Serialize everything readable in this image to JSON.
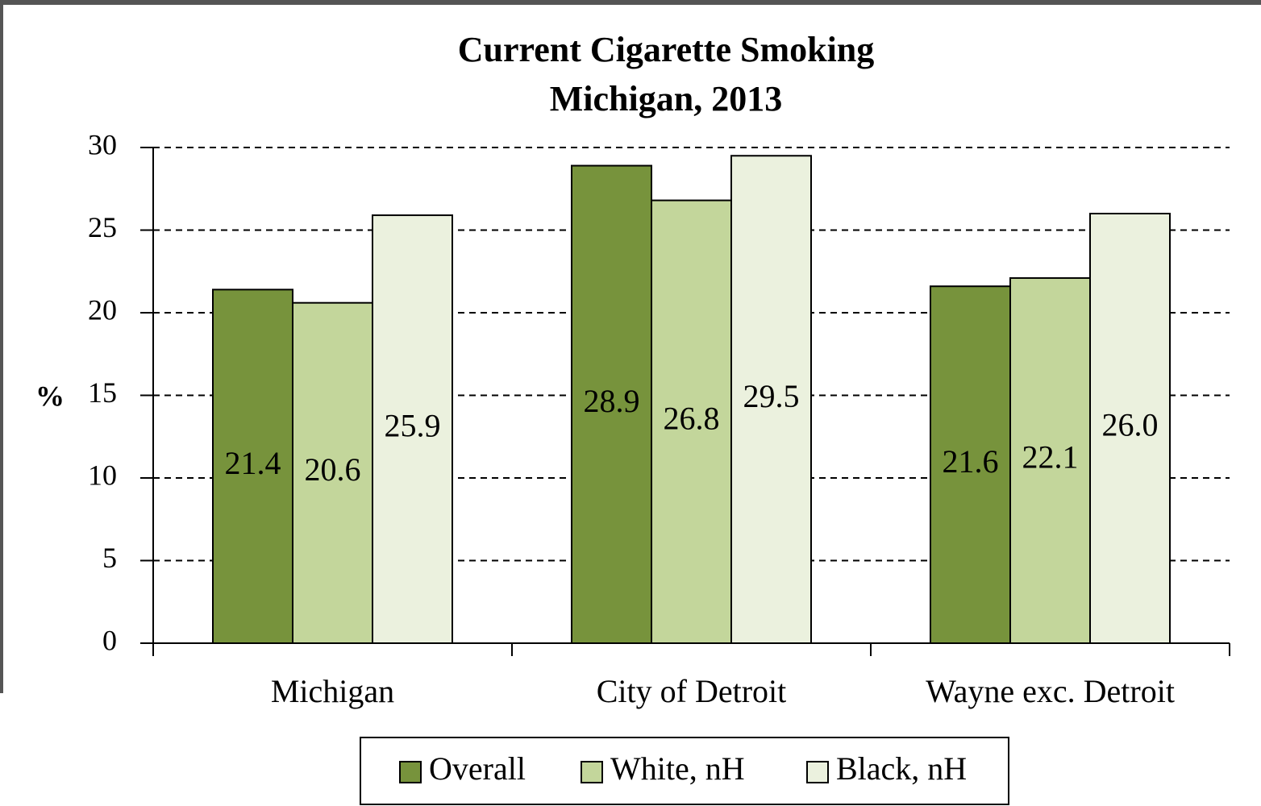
{
  "chart_data": {
    "type": "bar",
    "title": "Current Cigarette Smoking",
    "subtitle": "Michigan, 2013",
    "y_label": "%",
    "categories": [
      "Michigan",
      "City of Detroit",
      "Wayne exc. Detroit"
    ],
    "series": [
      {
        "name": "Overall",
        "color": "#77933c",
        "values": [
          21.4,
          28.9,
          21.6
        ],
        "value_labels": [
          "21.4",
          "28.9",
          "21.6"
        ]
      },
      {
        "name": "White, nH",
        "color": "#c3d69b",
        "values": [
          20.6,
          26.8,
          22.1
        ],
        "value_labels": [
          "20.6",
          "26.8",
          "22.1"
        ]
      },
      {
        "name": "Black, nH",
        "color": "#ebf1de",
        "values": [
          25.9,
          29.5,
          26.0
        ],
        "value_labels": [
          "25.9",
          "29.5",
          "26.0"
        ]
      }
    ],
    "ylim": [
      0,
      30
    ],
    "yticks": [
      0,
      5,
      10,
      15,
      20,
      25,
      30
    ],
    "grid": true,
    "legend": "bottom"
  }
}
